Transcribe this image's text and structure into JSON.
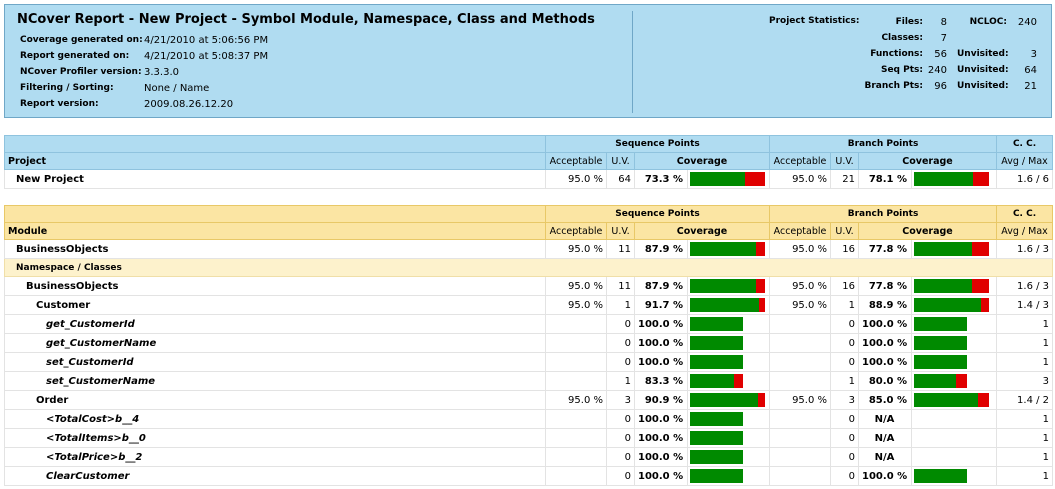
{
  "report": {
    "title": "NCover Report - New Project  - Symbol Module, Namespace, Class and Methods",
    "meta": [
      {
        "label": "Coverage generated on:",
        "value": "4/21/2010 at 5:06:56 PM"
      },
      {
        "label": "Report generated on:",
        "value": "4/21/2010 at 5:08:37 PM"
      },
      {
        "label": "NCover Profiler version:",
        "value": "3.3.3.0"
      },
      {
        "label": "Filtering / Sorting:",
        "value": "None / Name"
      },
      {
        "label": "Report version:",
        "value": "2009.08.26.12.20"
      }
    ],
    "stats_title": "Project Statistics:",
    "stats": {
      "files_label": "Files:",
      "files": "8",
      "ncloc_label": "NCLOC:",
      "ncloc": "240",
      "classes_label": "Classes:",
      "classes": "7",
      "functions_label": "Functions:",
      "functions": "56",
      "func_unvisited_label": "Unvisited:",
      "func_unvisited": "3",
      "seqpts_label": "Seq Pts:",
      "seqpts": "240",
      "seq_unvisited_label": "Unvisited:",
      "seq_unvisited": "64",
      "branchpts_label": "Branch Pts:",
      "branchpts": "96",
      "branch_unvisited_label": "Unvisited:",
      "branch_unvisited": "21"
    }
  },
  "headers": {
    "sequence_points": "Sequence Points",
    "branch_points": "Branch Points",
    "cc": "C. C.",
    "acceptable": "Acceptable",
    "uv": "U.V.",
    "coverage": "Coverage",
    "avg_max": "Avg / Max",
    "project": "Project",
    "module": "Module",
    "namespace_classes": "Namespace / Classes"
  },
  "project_row": {
    "name": "New Project",
    "seq_acc": "95.0 %",
    "seq_uv": "64",
    "seq_cov": "73.3 %",
    "seq_fill": 0.733,
    "br_acc": "95.0 %",
    "br_uv": "21",
    "br_cov": "78.1 %",
    "br_fill": 0.781,
    "cc": "1.6 / 6"
  },
  "rows": [
    {
      "kind": "module",
      "name": "BusinessObjects",
      "seq_acc": "95.0 %",
      "seq_uv": "11",
      "seq_cov": "87.9 %",
      "seq_fill": 0.879,
      "br_acc": "95.0 %",
      "br_uv": "16",
      "br_cov": "77.8 %",
      "br_fill": 0.778,
      "cc": "1.6 / 3"
    },
    {
      "kind": "nshead"
    },
    {
      "kind": "namespace",
      "name": "BusinessObjects",
      "seq_acc": "95.0 %",
      "seq_uv": "11",
      "seq_cov": "87.9 %",
      "seq_fill": 0.879,
      "br_acc": "95.0 %",
      "br_uv": "16",
      "br_cov": "77.8 %",
      "br_fill": 0.778,
      "cc": "1.6 / 3"
    },
    {
      "kind": "class",
      "name": "Customer",
      "seq_acc": "95.0 %",
      "seq_uv": "1",
      "seq_cov": "91.7 %",
      "seq_fill": 0.917,
      "br_acc": "95.0 %",
      "br_uv": "1",
      "br_cov": "88.9 %",
      "br_fill": 0.889,
      "cc": "1.4 / 3"
    },
    {
      "kind": "method",
      "name": "get_CustomerId",
      "seq_uv": "0",
      "seq_cov": "100.0 %",
      "seq_fill": 1.0,
      "br_uv": "0",
      "br_cov": "100.0 %",
      "br_fill": 1.0,
      "cc": "1"
    },
    {
      "kind": "method",
      "name": "get_CustomerName",
      "seq_uv": "0",
      "seq_cov": "100.0 %",
      "seq_fill": 1.0,
      "br_uv": "0",
      "br_cov": "100.0 %",
      "br_fill": 1.0,
      "cc": "1"
    },
    {
      "kind": "method",
      "name": "set_CustomerId",
      "seq_uv": "0",
      "seq_cov": "100.0 %",
      "seq_fill": 1.0,
      "br_uv": "0",
      "br_cov": "100.0 %",
      "br_fill": 1.0,
      "cc": "1"
    },
    {
      "kind": "method",
      "name": "set_CustomerName",
      "seq_uv": "1",
      "seq_cov": "83.3 %",
      "seq_fill": 0.833,
      "br_uv": "1",
      "br_cov": "80.0 %",
      "br_fill": 0.8,
      "cc": "3"
    },
    {
      "kind": "class",
      "name": "Order",
      "seq_acc": "95.0 %",
      "seq_uv": "3",
      "seq_cov": "90.9 %",
      "seq_fill": 0.909,
      "br_acc": "95.0 %",
      "br_uv": "3",
      "br_cov": "85.0 %",
      "br_fill": 0.85,
      "cc": "1.4 / 2"
    },
    {
      "kind": "method",
      "name": "<TotalCost>b__4",
      "seq_uv": "0",
      "seq_cov": "100.0 %",
      "seq_fill": 1.0,
      "br_uv": "0",
      "br_cov": "N/A",
      "br_fill": null,
      "cc": "1"
    },
    {
      "kind": "method",
      "name": "<TotalItems>b__0",
      "seq_uv": "0",
      "seq_cov": "100.0 %",
      "seq_fill": 1.0,
      "br_uv": "0",
      "br_cov": "N/A",
      "br_fill": null,
      "cc": "1"
    },
    {
      "kind": "method",
      "name": "<TotalPrice>b__2",
      "seq_uv": "0",
      "seq_cov": "100.0 %",
      "seq_fill": 1.0,
      "br_uv": "0",
      "br_cov": "N/A",
      "br_fill": null,
      "cc": "1"
    },
    {
      "kind": "method",
      "name": "ClearCustomer",
      "seq_uv": "0",
      "seq_cov": "100.0 %",
      "seq_fill": 1.0,
      "br_uv": "0",
      "br_cov": "100.0 %",
      "br_fill": 1.0,
      "cc": "1"
    }
  ],
  "colors": {
    "covered": "#008a00",
    "uncovered": "#e00000",
    "header_blue": "#b0dcf1",
    "header_yellow": "#fbe5a3"
  }
}
